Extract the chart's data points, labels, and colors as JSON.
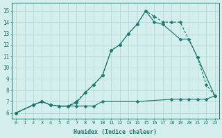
{
  "line1_x": [
    0,
    2,
    3,
    4,
    5,
    6,
    7,
    8,
    9,
    10,
    11,
    12,
    13,
    14,
    15,
    16,
    17,
    18,
    19,
    21,
    22,
    23
  ],
  "line1_y": [
    6.0,
    6.7,
    7.0,
    6.7,
    6.6,
    6.6,
    7.0,
    7.8,
    8.5,
    9.3,
    11.5,
    12.0,
    13.0,
    13.8,
    15.0,
    14.5,
    14.0,
    14.0,
    14.0,
    10.9,
    8.5,
    7.5
  ],
  "line2_x": [
    0,
    2,
    3,
    4,
    5,
    6,
    7,
    8,
    9,
    10,
    11,
    12,
    13,
    14,
    15,
    16,
    17,
    19,
    20,
    21,
    23
  ],
  "line2_y": [
    6.0,
    6.7,
    7.0,
    6.7,
    6.6,
    6.6,
    6.9,
    7.8,
    8.5,
    9.3,
    11.5,
    12.0,
    13.0,
    13.8,
    15.0,
    14.0,
    13.8,
    12.5,
    12.5,
    10.9,
    7.5
  ],
  "line3_x": [
    0,
    2,
    3,
    4,
    5,
    6,
    7,
    8,
    9,
    10,
    14,
    18,
    19,
    20,
    21,
    22,
    23
  ],
  "line3_y": [
    6.0,
    6.7,
    7.0,
    6.7,
    6.6,
    6.6,
    6.6,
    6.6,
    6.6,
    7.0,
    7.0,
    7.2,
    7.2,
    7.2,
    7.2,
    7.2,
    7.5
  ],
  "line_color": "#1a7a6e",
  "bg_color": "#d4eeee",
  "grid_color": "#b8d8d8",
  "xlabel": "Humidex (Indice chaleur)",
  "ylabel_ticks": [
    6,
    7,
    8,
    9,
    10,
    11,
    12,
    13,
    14,
    15
  ],
  "xlim": [
    -0.5,
    23.5
  ],
  "ylim": [
    5.5,
    15.7
  ],
  "markersize": 2.5
}
